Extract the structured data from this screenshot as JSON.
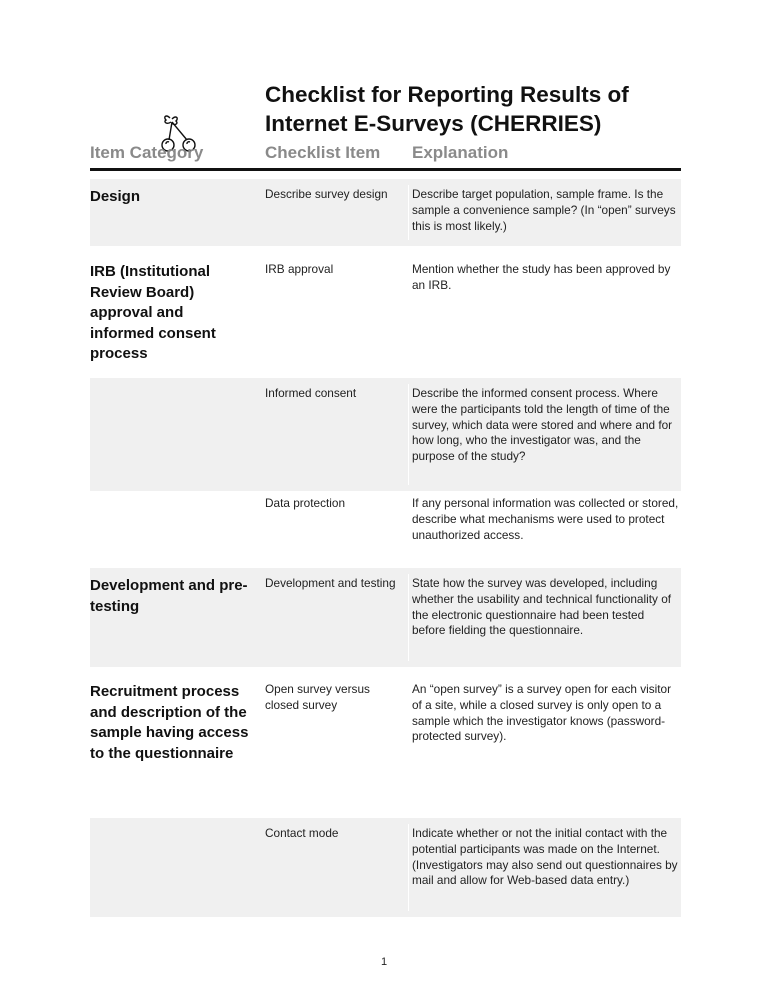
{
  "document": {
    "title_line1": "Checklist for Reporting Results of",
    "title_line2": "Internet E-Surveys (CHERRIES)",
    "logo": "cherries-icon",
    "columns": [
      "Item Category",
      "Checklist Item",
      "Explanation"
    ],
    "rows": [
      {
        "category": "Design",
        "item": "Describe survey design",
        "explanation": "Describe target population, sample frame. Is the sample a convenience sample? (In “open” surveys this is most likely.)"
      },
      {
        "category": "IRB (Institutional Review Board) approval and informed consent process",
        "item": "IRB approval",
        "explanation": "Mention whether the study has been approved by an IRB."
      },
      {
        "category": "",
        "item": "Informed consent",
        "explanation": "Describe the informed consent process. Where were the participants told the length of time of the survey, which data were stored and where and for how long, who the investigator was, and the purpose of the study?"
      },
      {
        "category": "",
        "item": "Data protection",
        "explanation": "If any personal information was collected or stored, describe what mechanisms were used to protect unauthorized access."
      },
      {
        "category": "Development and pre-testing",
        "item": "Development and testing",
        "explanation": "State how the survey was developed, including whether the usability and technical functionality of the electronic questionnaire had been tested before fielding the questionnaire."
      },
      {
        "category": "Recruitment process and description of the sample having access to the questionnaire",
        "item": "Open survey versus closed survey",
        "explanation": "An “open survey” is a survey open for each visitor of a site, while a closed survey is only open to a sample which the investigator knows (password-protected survey)."
      },
      {
        "category": "",
        "item": "Contact mode",
        "explanation": "Indicate whether or not the initial contact with the potential participants was made on the Internet. (Investigators may also send out questionnaires by mail and allow for Web-based data entry.)"
      }
    ],
    "page_number": "1"
  }
}
